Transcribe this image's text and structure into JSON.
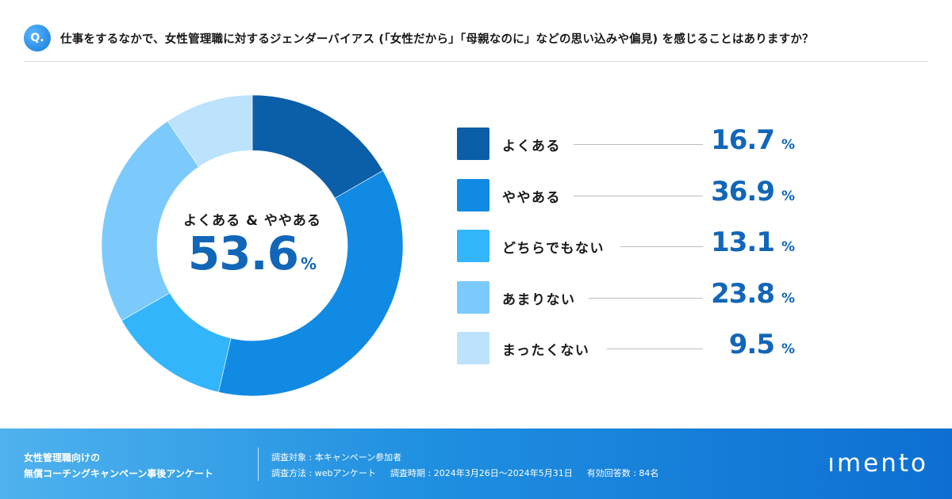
{
  "question": {
    "badge": "Q.",
    "text": "仕事をするなかで、女性管理職に対するジェンダーバイアス (「女性だから」「母親なのに」などの思い込みや偏見) を感じることはありますか？"
  },
  "center": {
    "label": "よくある & ややある",
    "value": "53.6",
    "unit": "%"
  },
  "legend": [
    {
      "label": "よくある",
      "value": "16.7",
      "unit": "%"
    },
    {
      "label": "ややある",
      "value": "36.9",
      "unit": "%"
    },
    {
      "label": "どちらでもない",
      "value": "13.1",
      "unit": "%"
    },
    {
      "label": "あまりない",
      "value": "23.8",
      "unit": "%"
    },
    {
      "label": "まったくない",
      "value": "9.5",
      "unit": "%"
    }
  ],
  "footer": {
    "title_line1": "女性管理職向けの",
    "title_line2": "無償コーチングキャンペーン事後アンケート",
    "target": "調査対象 : 本キャンペーン参加者",
    "method": "調査方法 : webアンケート",
    "period": "調査時期 : 2024年3月26日～2024年5月31日",
    "responses": "有効回答数 : 84名",
    "logo": "ımento"
  },
  "colors": [
    "#0b5ea8",
    "#118ae3",
    "#33b5fb",
    "#7ccafc",
    "#bce2fc"
  ],
  "chart_data": {
    "type": "pie",
    "title": "仕事をするなかで、女性管理職に対するジェンダーバイアス (「女性だから」「母親なのに」などの思い込みや偏見) を感じることはありますか？",
    "categories": [
      "よくある",
      "ややある",
      "どちらでもない",
      "あまりない",
      "まったくない"
    ],
    "values": [
      16.7,
      36.9,
      13.1,
      23.8,
      9.5
    ],
    "unit": "%",
    "center_annotation": "よくある & ややある 53.6%"
  }
}
